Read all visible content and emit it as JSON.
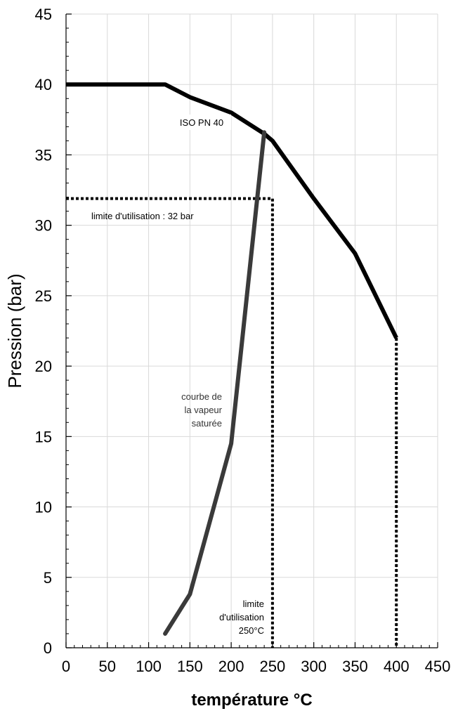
{
  "chart_data": {
    "type": "line",
    "xlabel": "température °C",
    "ylabel": "Pression (bar)",
    "xlim": [
      0,
      450
    ],
    "ylim": [
      0,
      45
    ],
    "xticks": [
      "0",
      "50",
      "100",
      "150",
      "200",
      "250",
      "300",
      "350",
      "400",
      "450"
    ],
    "yticks": [
      "0",
      "5",
      "10",
      "15",
      "20",
      "25",
      "30",
      "35",
      "40",
      "45"
    ],
    "grid": true,
    "series": [
      {
        "name": "ISO PN 40",
        "color": "#000000",
        "points": [
          [
            0,
            40
          ],
          [
            120,
            40
          ],
          [
            150,
            39.1
          ],
          [
            200,
            38
          ],
          [
            240,
            36.5
          ],
          [
            250,
            36
          ],
          [
            300,
            31.9
          ],
          [
            350,
            28
          ],
          [
            400,
            22
          ]
        ]
      },
      {
        "name": "courbe de la vapeur saturée",
        "color": "#3a3a3a",
        "points": [
          [
            120,
            1
          ],
          [
            150,
            3.8
          ],
          [
            200,
            14.5
          ],
          [
            240,
            36.6
          ]
        ]
      }
    ],
    "reference_lines": [
      {
        "name": "limite-pression",
        "points": [
          [
            0,
            31.9
          ],
          [
            250,
            31.9
          ],
          [
            250,
            0
          ]
        ]
      },
      {
        "name": "limite-400",
        "points": [
          [
            400,
            22
          ],
          [
            400,
            0
          ]
        ]
      }
    ],
    "annotations": {
      "iso": "ISO PN 40",
      "limite_pression": "limite d'utilisation : 32 bar",
      "vapeur": [
        "courbe de",
        "la vapeur",
        "saturée"
      ],
      "limite_temp": [
        "limite",
        "d'utilisation",
        "250°C"
      ]
    }
  }
}
